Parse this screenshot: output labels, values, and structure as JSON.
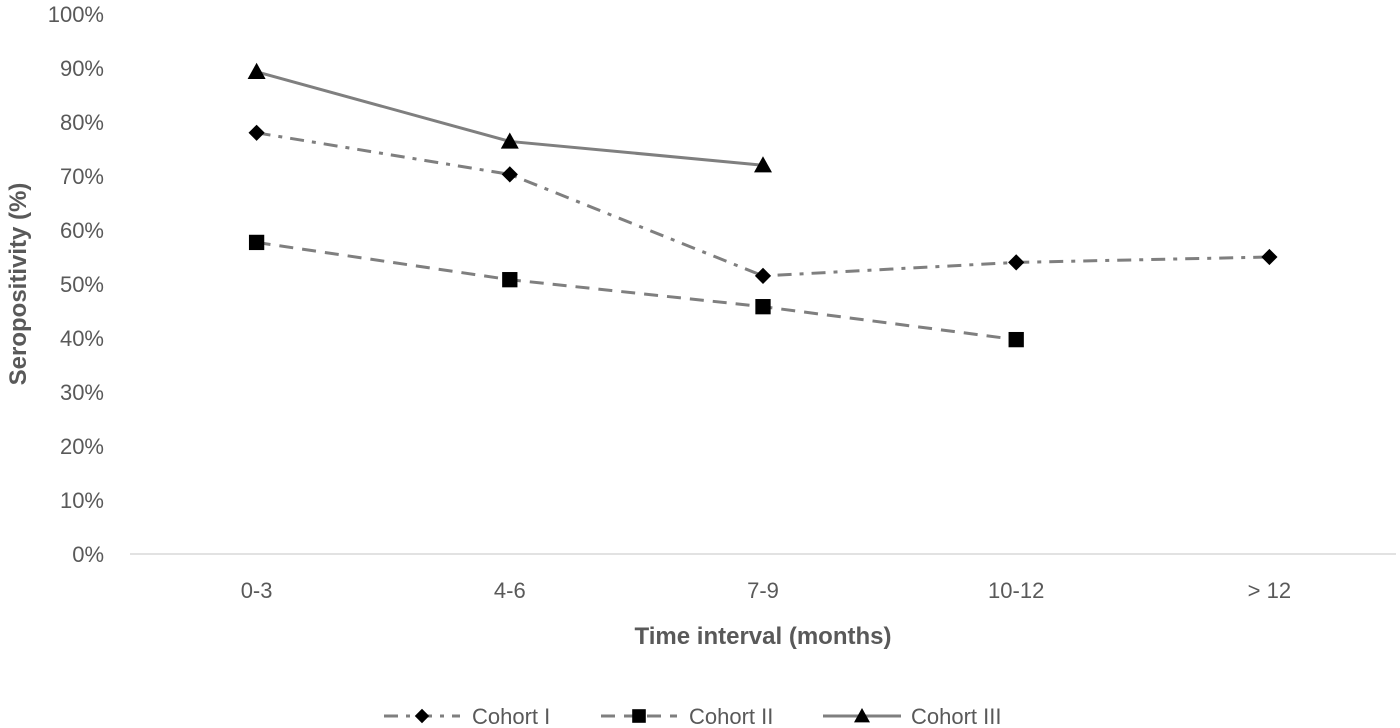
{
  "chart_data": {
    "type": "line",
    "title": "",
    "xlabel": "Time interval (months)",
    "ylabel": "Seropositivity (%)",
    "categories": [
      "0-3",
      "4-6",
      "7-9",
      "10-12",
      "> 12"
    ],
    "ylim": [
      0,
      100
    ],
    "yticks": [
      "0%",
      "10%",
      "20%",
      "30%",
      "40%",
      "50%",
      "60%",
      "70%",
      "80%",
      "90%",
      "100%"
    ],
    "grid": false,
    "legend_position": "bottom",
    "series": [
      {
        "name": "Cohort I",
        "values": [
          78,
          70.3,
          51.5,
          54,
          55
        ],
        "marker": "diamond",
        "line_style": "dash-dot",
        "color": "#7f7f7f",
        "marker_color": "#000000"
      },
      {
        "name": "Cohort II",
        "values": [
          57.7,
          50.8,
          45.8,
          39.7,
          null
        ],
        "marker": "square",
        "line_style": "dashed",
        "color": "#7f7f7f",
        "marker_color": "#000000"
      },
      {
        "name": "Cohort III",
        "values": [
          89.3,
          76.4,
          72,
          null,
          null
        ],
        "marker": "triangle",
        "line_style": "solid",
        "color": "#7f7f7f",
        "marker_color": "#000000"
      }
    ]
  }
}
